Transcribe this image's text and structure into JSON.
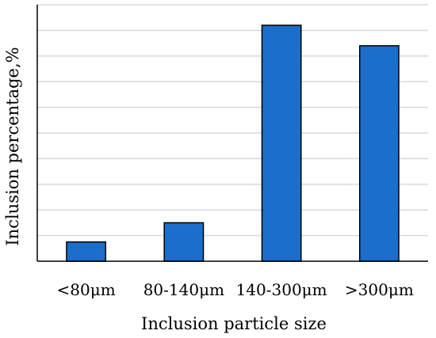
{
  "chart_data": {
    "type": "bar",
    "title": "",
    "xlabel": "Inclusion particle size",
    "ylabel": "Inclusion percentage,%",
    "categories": [
      "<80μm",
      "80-140μm",
      "140-300μm",
      ">300μm"
    ],
    "values": [
      7.5,
      15,
      92,
      84
    ],
    "ylim": [
      0,
      100
    ],
    "y_tick_labels_shown": false,
    "grid": true,
    "legend": "none",
    "bar_color": "#1b6fca",
    "bar_edge_color": "#000000",
    "grid_color": "#d9d9d9",
    "axis_color": "#000000"
  }
}
